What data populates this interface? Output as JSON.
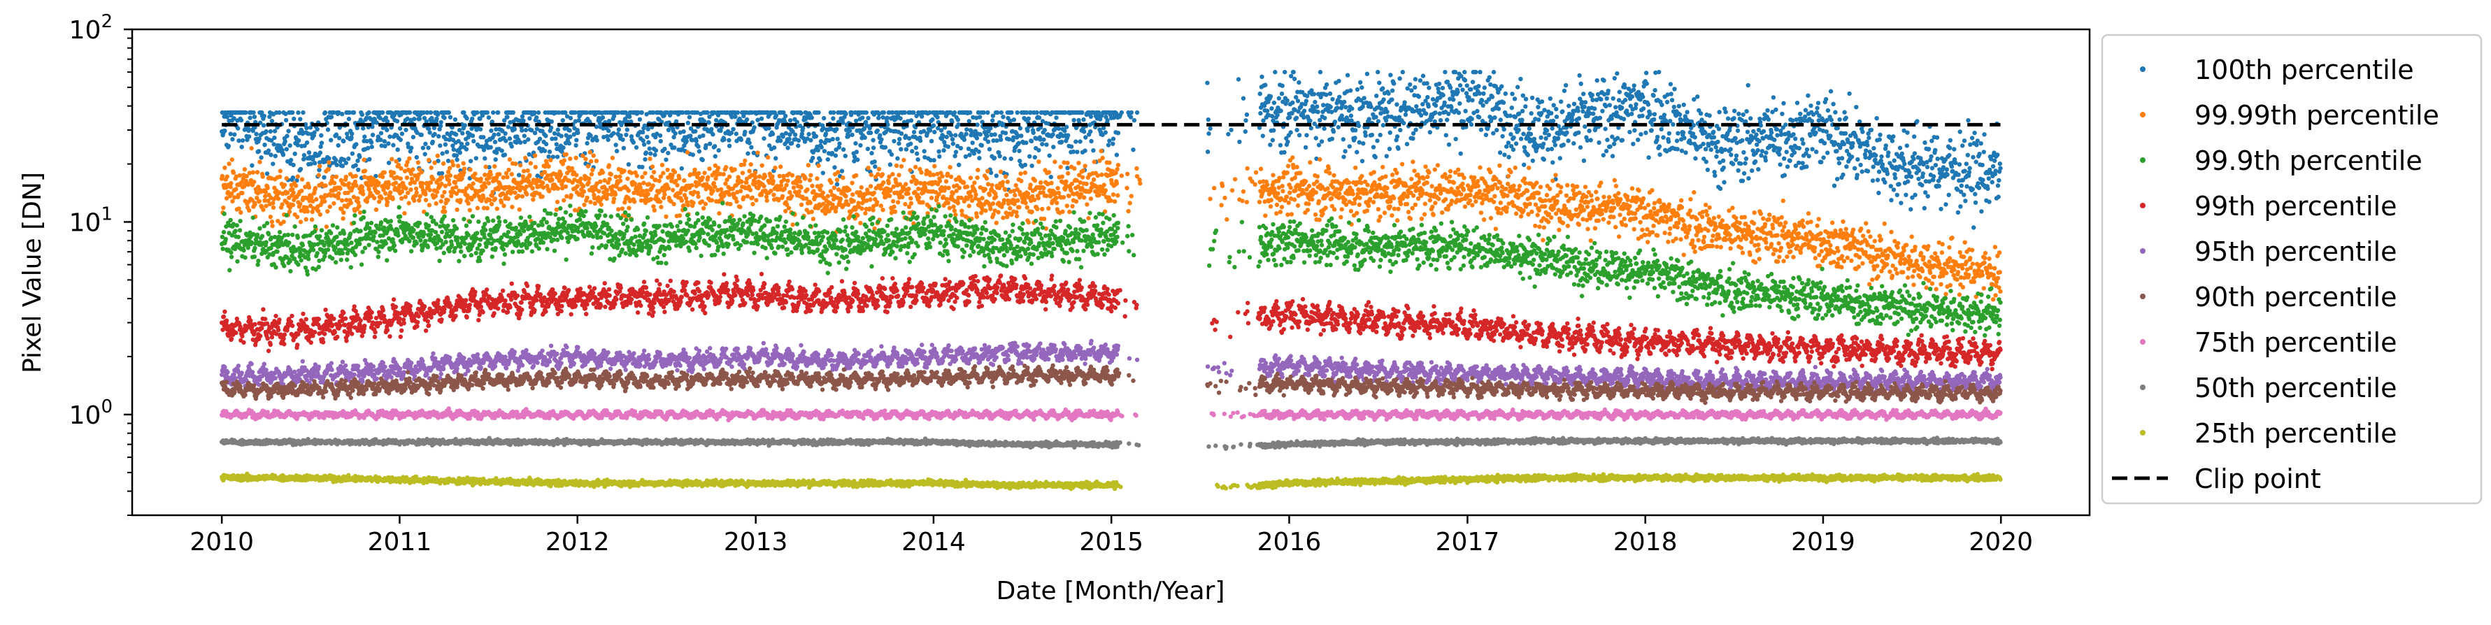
{
  "chart_data": {
    "type": "scatter",
    "title": "",
    "xlabel": "Date [Month/Year]",
    "ylabel": "Pixel Value [DN]",
    "yscale": "log",
    "ylim": [
      0.3,
      100
    ],
    "xlim": [
      "2009-07-01",
      "2020-07-01"
    ],
    "x_ticks": [
      {
        "label": "2010",
        "date": "2010-01-01"
      },
      {
        "label": "2011",
        "date": "2011-01-01"
      },
      {
        "label": "2012",
        "date": "2012-01-01"
      },
      {
        "label": "2013",
        "date": "2013-01-01"
      },
      {
        "label": "2014",
        "date": "2014-01-01"
      },
      {
        "label": "2015",
        "date": "2015-01-01"
      },
      {
        "label": "2016",
        "date": "2016-01-01"
      },
      {
        "label": "2017",
        "date": "2017-01-01"
      },
      {
        "label": "2018",
        "date": "2018-01-01"
      },
      {
        "label": "2019",
        "date": "2019-01-01"
      },
      {
        "label": "2020",
        "date": "2020-01-01"
      }
    ],
    "y_ticks": [
      {
        "value": 1,
        "base": "10",
        "exp": "0"
      },
      {
        "value": 10,
        "base": "10",
        "exp": "1"
      },
      {
        "value": 100,
        "base": "10",
        "exp": "2"
      }
    ],
    "grid": false,
    "legend_position": "outside-right",
    "clip_point": {
      "name": "Clip point",
      "value": 32,
      "x_range": [
        "2010-01-01",
        "2019-12-31"
      ],
      "style": "dashed",
      "color": "#000000"
    },
    "data_gap": [
      "2015-03-01",
      "2015-07-15"
    ],
    "series": [
      {
        "name": "100th percentile",
        "color": "#1f77b4",
        "points": [
          [
            "2010-02-01",
            35
          ],
          [
            "2010-06-01",
            25
          ],
          [
            "2011-01-01",
            33
          ],
          [
            "2011-06-01",
            28
          ],
          [
            "2012-01-01",
            34
          ],
          [
            "2012-06-01",
            30
          ],
          [
            "2013-01-01",
            34
          ],
          [
            "2013-06-01",
            29
          ],
          [
            "2014-01-01",
            33
          ],
          [
            "2014-06-01",
            28
          ],
          [
            "2015-01-01",
            35
          ],
          [
            "2015-09-01",
            36
          ],
          [
            "2016-01-01",
            40
          ],
          [
            "2016-06-01",
            35
          ],
          [
            "2017-01-01",
            45
          ],
          [
            "2017-06-01",
            30
          ],
          [
            "2018-01-01",
            40
          ],
          [
            "2018-06-01",
            25
          ],
          [
            "2019-01-01",
            30
          ],
          [
            "2019-06-01",
            20
          ],
          [
            "2019-12-01",
            18
          ]
        ]
      },
      {
        "name": "99.99th percentile",
        "color": "#ff7f0e",
        "points": [
          [
            "2010-02-01",
            15
          ],
          [
            "2010-06-01",
            13
          ],
          [
            "2011-01-01",
            16
          ],
          [
            "2011-06-01",
            15
          ],
          [
            "2012-01-01",
            17
          ],
          [
            "2012-06-01",
            14
          ],
          [
            "2013-01-01",
            16
          ],
          [
            "2013-06-01",
            13
          ],
          [
            "2014-01-01",
            15
          ],
          [
            "2014-06-01",
            13
          ],
          [
            "2015-01-01",
            16
          ],
          [
            "2015-09-01",
            14
          ],
          [
            "2016-01-01",
            15
          ],
          [
            "2016-06-01",
            14
          ],
          [
            "2017-01-01",
            15
          ],
          [
            "2017-06-01",
            13
          ],
          [
            "2018-01-01",
            11
          ],
          [
            "2018-06-01",
            9
          ],
          [
            "2019-01-01",
            8
          ],
          [
            "2019-06-01",
            6.5
          ],
          [
            "2019-12-01",
            5.5
          ]
        ]
      },
      {
        "name": "99.9th percentile",
        "color": "#2ca02c",
        "points": [
          [
            "2010-02-01",
            8
          ],
          [
            "2010-06-01",
            7
          ],
          [
            "2011-01-01",
            9
          ],
          [
            "2011-06-01",
            8
          ],
          [
            "2012-01-01",
            9.5
          ],
          [
            "2012-06-01",
            8
          ],
          [
            "2013-01-01",
            9
          ],
          [
            "2013-06-01",
            7.5
          ],
          [
            "2014-01-01",
            9
          ],
          [
            "2014-06-01",
            7.5
          ],
          [
            "2015-01-01",
            8.5
          ],
          [
            "2015-09-01",
            7
          ],
          [
            "2016-01-01",
            8
          ],
          [
            "2016-06-01",
            7.5
          ],
          [
            "2017-01-01",
            7.5
          ],
          [
            "2017-06-01",
            6.5
          ],
          [
            "2018-01-01",
            5.5
          ],
          [
            "2018-06-01",
            4.5
          ],
          [
            "2019-01-01",
            4
          ],
          [
            "2019-06-01",
            3.6
          ],
          [
            "2019-12-01",
            3.4
          ]
        ]
      },
      {
        "name": "99th percentile",
        "color": "#d62728",
        "points": [
          [
            "2010-02-01",
            2.8
          ],
          [
            "2010-06-01",
            2.7
          ],
          [
            "2011-01-01",
            3.2
          ],
          [
            "2011-06-01",
            3.8
          ],
          [
            "2012-01-01",
            4
          ],
          [
            "2012-06-01",
            4.1
          ],
          [
            "2013-01-01",
            4.2
          ],
          [
            "2013-06-01",
            3.9
          ],
          [
            "2014-01-01",
            4.3
          ],
          [
            "2014-06-01",
            4.5
          ],
          [
            "2015-01-01",
            4
          ],
          [
            "2015-09-01",
            3
          ],
          [
            "2016-01-01",
            3.3
          ],
          [
            "2016-06-01",
            3.1
          ],
          [
            "2017-01-01",
            2.9
          ],
          [
            "2017-06-01",
            2.6
          ],
          [
            "2018-01-01",
            2.4
          ],
          [
            "2018-06-01",
            2.3
          ],
          [
            "2019-01-01",
            2.2
          ],
          [
            "2019-06-01",
            2.15
          ],
          [
            "2019-12-01",
            2.1
          ]
        ]
      },
      {
        "name": "95th percentile",
        "color": "#9467bd",
        "points": [
          [
            "2010-02-01",
            1.6
          ],
          [
            "2010-06-01",
            1.6
          ],
          [
            "2011-01-01",
            1.7
          ],
          [
            "2011-06-01",
            1.9
          ],
          [
            "2012-01-01",
            2
          ],
          [
            "2012-06-01",
            1.9
          ],
          [
            "2013-01-01",
            2
          ],
          [
            "2013-06-01",
            1.9
          ],
          [
            "2014-01-01",
            2
          ],
          [
            "2014-06-01",
            2.1
          ],
          [
            "2015-01-01",
            2.1
          ],
          [
            "2015-09-01",
            1.7
          ],
          [
            "2016-01-01",
            1.8
          ],
          [
            "2016-06-01",
            1.7
          ],
          [
            "2017-01-01",
            1.65
          ],
          [
            "2017-06-01",
            1.6
          ],
          [
            "2018-01-01",
            1.55
          ],
          [
            "2018-06-01",
            1.5
          ],
          [
            "2019-01-01",
            1.5
          ],
          [
            "2019-06-01",
            1.5
          ],
          [
            "2019-12-01",
            1.5
          ]
        ]
      },
      {
        "name": "90th percentile",
        "color": "#8c564b",
        "points": [
          [
            "2010-02-01",
            1.35
          ],
          [
            "2010-06-01",
            1.35
          ],
          [
            "2011-01-01",
            1.4
          ],
          [
            "2011-06-01",
            1.5
          ],
          [
            "2012-01-01",
            1.55
          ],
          [
            "2012-06-01",
            1.5
          ],
          [
            "2013-01-01",
            1.55
          ],
          [
            "2013-06-01",
            1.5
          ],
          [
            "2014-01-01",
            1.55
          ],
          [
            "2014-06-01",
            1.6
          ],
          [
            "2015-01-01",
            1.6
          ],
          [
            "2015-09-01",
            1.4
          ],
          [
            "2016-01-01",
            1.45
          ],
          [
            "2016-06-01",
            1.4
          ],
          [
            "2017-01-01",
            1.38
          ],
          [
            "2017-06-01",
            1.35
          ],
          [
            "2018-01-01",
            1.33
          ],
          [
            "2018-06-01",
            1.32
          ],
          [
            "2019-01-01",
            1.31
          ],
          [
            "2019-06-01",
            1.3
          ],
          [
            "2019-12-01",
            1.3
          ]
        ]
      },
      {
        "name": "75th percentile",
        "color": "#e377c2",
        "points": [
          [
            "2010-02-01",
            1
          ],
          [
            "2010-06-01",
            1
          ],
          [
            "2011-01-01",
            1
          ],
          [
            "2011-06-01",
            1
          ],
          [
            "2012-01-01",
            1
          ],
          [
            "2012-06-01",
            1
          ],
          [
            "2013-01-01",
            1
          ],
          [
            "2013-06-01",
            1
          ],
          [
            "2014-01-01",
            1
          ],
          [
            "2014-06-01",
            1
          ],
          [
            "2015-01-01",
            1
          ],
          [
            "2015-09-01",
            1
          ],
          [
            "2016-01-01",
            1
          ],
          [
            "2016-06-01",
            1
          ],
          [
            "2017-01-01",
            1
          ],
          [
            "2017-06-01",
            1
          ],
          [
            "2018-01-01",
            1
          ],
          [
            "2018-06-01",
            1
          ],
          [
            "2019-01-01",
            1
          ],
          [
            "2019-06-01",
            1
          ],
          [
            "2019-12-01",
            1
          ]
        ]
      },
      {
        "name": "50th percentile",
        "color": "#7f7f7f",
        "points": [
          [
            "2010-02-01",
            0.72
          ],
          [
            "2010-06-01",
            0.72
          ],
          [
            "2011-01-01",
            0.72
          ],
          [
            "2011-06-01",
            0.72
          ],
          [
            "2012-01-01",
            0.72
          ],
          [
            "2012-06-01",
            0.72
          ],
          [
            "2013-01-01",
            0.72
          ],
          [
            "2013-06-01",
            0.72
          ],
          [
            "2014-01-01",
            0.72
          ],
          [
            "2014-06-01",
            0.7
          ],
          [
            "2015-01-01",
            0.7
          ],
          [
            "2015-09-01",
            0.68
          ],
          [
            "2016-01-01",
            0.7
          ],
          [
            "2016-06-01",
            0.72
          ],
          [
            "2017-01-01",
            0.72
          ],
          [
            "2017-06-01",
            0.73
          ],
          [
            "2018-01-01",
            0.73
          ],
          [
            "2018-06-01",
            0.73
          ],
          [
            "2019-01-01",
            0.73
          ],
          [
            "2019-06-01",
            0.73
          ],
          [
            "2019-12-01",
            0.73
          ]
        ]
      },
      {
        "name": "25th percentile",
        "color": "#bcbd22",
        "points": [
          [
            "2010-02-01",
            0.47
          ],
          [
            "2010-06-01",
            0.47
          ],
          [
            "2011-01-01",
            0.46
          ],
          [
            "2011-06-01",
            0.45
          ],
          [
            "2012-01-01",
            0.44
          ],
          [
            "2012-06-01",
            0.44
          ],
          [
            "2013-01-01",
            0.44
          ],
          [
            "2013-06-01",
            0.44
          ],
          [
            "2014-01-01",
            0.44
          ],
          [
            "2014-06-01",
            0.43
          ],
          [
            "2015-01-01",
            0.43
          ],
          [
            "2015-09-01",
            0.42
          ],
          [
            "2016-01-01",
            0.44
          ],
          [
            "2016-06-01",
            0.45
          ],
          [
            "2017-01-01",
            0.46
          ],
          [
            "2017-06-01",
            0.47
          ],
          [
            "2018-01-01",
            0.47
          ],
          [
            "2018-06-01",
            0.47
          ],
          [
            "2019-01-01",
            0.47
          ],
          [
            "2019-06-01",
            0.47
          ],
          [
            "2019-12-01",
            0.47
          ]
        ]
      }
    ]
  }
}
